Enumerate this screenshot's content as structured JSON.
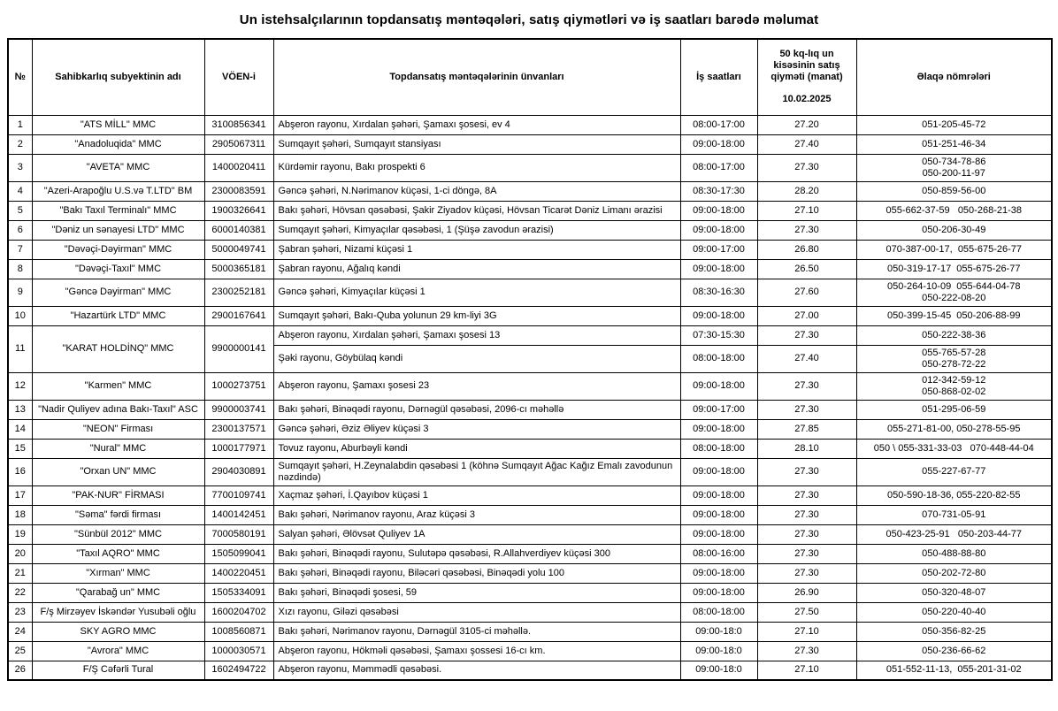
{
  "title": "Un istehsalçılarının topdansatış məntəqələri, satış qiymətləri və iş saatları barədə məlumat",
  "table": {
    "headers": {
      "num": "№",
      "name": "Sahibkarlıq subyektinin adı",
      "voen": "VÖEN-i",
      "address": "Topdansatış məntəqələrinin ünvanları",
      "hours": "İş saatları",
      "price_line1": "50 kq-lıq un kisəsinin satış qiyməti (manat)",
      "price_line2": "10.02.2025",
      "contact": "Əlaqə nömrələri"
    },
    "rows": [
      {
        "num": "1",
        "name": "\"ATS MİLL\" MMC",
        "voen": "3100856341",
        "points": [
          {
            "address": "Abşeron rayonu, Xırdalan şəhəri, Şamaxı şosesi, ev 4",
            "hours": "08:00-17:00",
            "price": "27.20",
            "contacts": [
              "051-205-45-72"
            ]
          }
        ]
      },
      {
        "num": "2",
        "name": "\"Anadoluqida\" MMC",
        "voen": "2905067311",
        "points": [
          {
            "address": "Sumqayıt şəhəri, Sumqayıt stansiyası",
            "hours": "09:00-18:00",
            "price": "27.40",
            "contacts": [
              "051-251-46-34"
            ]
          }
        ]
      },
      {
        "num": "3",
        "name": "\"AVETA\" MMC",
        "voen": "1400020411",
        "points": [
          {
            "address": "Kürdəmir rayonu, Bakı prospekti 6",
            "hours": "08:00-17:00",
            "price": "27.30",
            "contacts": [
              "050-734-78-86",
              "050-200-11-97"
            ]
          }
        ]
      },
      {
        "num": "4",
        "name": "\"Azeri-Arapoğlu U.S.və T.LTD\" BM",
        "voen": "2300083591",
        "points": [
          {
            "address": "Gəncə şəhəri, N.Nərimanov küçəsi, 1-ci döngə, 8A",
            "hours": "08:30-17:30",
            "price": "28.20",
            "contacts": [
              "050-859-56-00"
            ]
          }
        ]
      },
      {
        "num": "5",
        "name": "\"Bakı Taxıl Terminalı\" MMC",
        "voen": "1900326641",
        "points": [
          {
            "address": "Bakı şəhəri, Hövsan qəsəbəsi, Şakir Ziyadov küçəsi, Hövsan Ticarət Dəniz Limanı ərazisi",
            "hours": "09:00-18:00",
            "price": "27.10",
            "contacts": [
              "055-662-37-59   050-268-21-38"
            ]
          }
        ]
      },
      {
        "num": "6",
        "name": "\"Dəniz un sənayesi LTD\" MMC",
        "voen": "6000140381",
        "points": [
          {
            "address": "Sumqayıt şəhəri, Kimyaçılar qəsəbəsi, 1 (Şüşə zavodun ərazisi)",
            "hours": "09:00-18:00",
            "price": "27.30",
            "contacts": [
              "050-206-30-49"
            ]
          }
        ]
      },
      {
        "num": "7",
        "name": "\"Dəvəçi-Dəyirman\" MMC",
        "voen": "5000049741",
        "points": [
          {
            "address": "Şabran şəhəri, Nizami küçəsi 1",
            "hours": "09:00-17:00",
            "price": "26.80",
            "contacts": [
              "070-387-00-17,  055-675-26-77"
            ]
          }
        ]
      },
      {
        "num": "8",
        "name": "\"Dəvəçi-Taxıl\" MMC",
        "voen": "5000365181",
        "points": [
          {
            "address": "Şabran rayonu, Ağalıq kəndi",
            "hours": "09:00-18:00",
            "price": "26.50",
            "contacts": [
              "050-319-17-17  055-675-26-77"
            ]
          }
        ]
      },
      {
        "num": "9",
        "name": "\"Gəncə Dəyirman\" MMC",
        "voen": "2300252181",
        "points": [
          {
            "address": "Gəncə şəhəri, Kimyaçılar küçəsi 1",
            "hours": "08:30-16:30",
            "price": "27.60",
            "contacts": [
              "050-264-10-09  055-644-04-78",
              "050-222-08-20"
            ]
          }
        ]
      },
      {
        "num": "10",
        "name": "\"Hazartürk LTD\" MMC",
        "voen": "2900167641",
        "points": [
          {
            "address": "Sumqayıt şəhəri, Bakı-Quba yolunun 29 km-liyi 3G",
            "hours": "09:00-18:00",
            "price": "27.00",
            "contacts": [
              "050-399-15-45  050-206-88-99"
            ]
          }
        ]
      },
      {
        "num": "11",
        "name": "\"KARAT HOLDİNQ\" MMC",
        "voen": "9900000141",
        "points": [
          {
            "address": "Abşeron rayonu, Xırdalan şəhəri, Şamaxı şosesi 13",
            "hours": "07:30-15:30",
            "price": "27.30",
            "contacts": [
              "050-222-38-36"
            ]
          },
          {
            "address": "Şəki rayonu, Göybülaq kəndi",
            "hours": "08:00-18:00",
            "price": "27.40",
            "contacts": [
              "055-765-57-28",
              "050-278-72-22"
            ]
          }
        ]
      },
      {
        "num": "12",
        "name": "\"Karmen\" MMC",
        "voen": "1000273751",
        "points": [
          {
            "address": "Abşeron rayonu, Şamaxı şosesi 23",
            "hours": "09:00-18:00",
            "price": "27.30",
            "contacts": [
              "012-342-59-12",
              "050-868-02-02"
            ]
          }
        ]
      },
      {
        "num": "13",
        "name": "\"Nadir Quliyev adına Bakı-Taxıl\" ASC",
        "voen": "9900003741",
        "points": [
          {
            "address": "Bakı şəhəri, Binəqədi rayonu, Dərnəgül qəsəbəsi, 2096-cı məhəllə",
            "hours": "09:00-17:00",
            "price": "27.30",
            "contacts": [
              "051-295-06-59"
            ]
          }
        ]
      },
      {
        "num": "14",
        "name": "\"NEON\" Firması",
        "voen": "2300137571",
        "points": [
          {
            "address": "Gəncə şəhəri, Əziz Əliyev küçəsi 3",
            "hours": "09:00-18:00",
            "price": "27.85",
            "contacts": [
              "055-271-81-00, 050-278-55-95"
            ]
          }
        ]
      },
      {
        "num": "15",
        "name": "\"Nural\" MMC",
        "voen": "1000177971",
        "points": [
          {
            "address": "Tovuz rayonu, Aburbəyli kəndi",
            "hours": "08:00-18:00",
            "price": "28.10",
            "contacts": [
              "050 \\ 055-331-33-03   070-448-44-04"
            ]
          }
        ]
      },
      {
        "num": "16",
        "name": "\"Orxan UN\" MMC",
        "voen": "2904030891",
        "points": [
          {
            "address": "Sumqayıt şəhəri, H.Zeynalabdin qəsəbəsi 1 (köhnə Sumqayıt Ağac Kağız Emalı zavodunun nəzdində)",
            "hours": "09:00-18:00",
            "price": "27.30",
            "contacts": [
              "055-227-67-77"
            ]
          }
        ]
      },
      {
        "num": "17",
        "name": "\"PAK-NUR\" FİRMASI",
        "voen": "7700109741",
        "points": [
          {
            "address": "Xaçmaz şəhəri, İ.Qayıbov küçəsi 1",
            "hours": "09:00-18:00",
            "price": "27.30",
            "contacts": [
              "050-590-18-36, 055-220-82-55"
            ]
          }
        ]
      },
      {
        "num": "18",
        "name": "\"Səma\" fərdi firması",
        "voen": "1400142451",
        "points": [
          {
            "address": "Bakı şəhəri, Nərimanov rayonu, Araz küçəsi 3",
            "hours": "09:00-18:00",
            "price": "27.30",
            "contacts": [
              "070-731-05-91"
            ]
          }
        ]
      },
      {
        "num": "19",
        "name": "\"Sünbül 2012\" MMC",
        "voen": "7000580191",
        "points": [
          {
            "address": "Salyan şəhəri, Əlövsət Quliyev 1A",
            "hours": "09:00-18:00",
            "price": "27.30",
            "contacts": [
              "050-423-25-91   050-203-44-77"
            ]
          }
        ]
      },
      {
        "num": "20",
        "name": "\"Taxıl AQRO\" MMC",
        "voen": "1505099041",
        "points": [
          {
            "address": "Bakı şəhəri, Binəqədi rayonu, Sulutəpə qəsəbəsi, R.Allahverdiyev küçəsi 300",
            "hours": "08:00-16:00",
            "price": "27.30",
            "contacts": [
              "050-488-88-80"
            ]
          }
        ]
      },
      {
        "num": "21",
        "name": "\"Xırman\" MMC",
        "voen": "1400220451",
        "points": [
          {
            "address": "Bakı şəhəri, Binəqədi rayonu, Biləcəri qəsəbəsi, Binəqədi yolu 100",
            "hours": "09:00-18:00",
            "price": "27.30",
            "contacts": [
              "050-202-72-80"
            ]
          }
        ]
      },
      {
        "num": "22",
        "name": "\"Qarabağ un\" MMC",
        "voen": "1505334091",
        "points": [
          {
            "address": "Bakı şəhəri, Binəqədi şosesi, 59",
            "hours": "09:00-18:00",
            "price": "26.90",
            "contacts": [
              "050-320-48-07"
            ]
          }
        ]
      },
      {
        "num": "23",
        "name": "F/ş Mirzəyev İskəndər Yusubəli oğlu",
        "voen": "1600204702",
        "points": [
          {
            "address": "Xızı rayonu, Giləzi qəsəbəsi",
            "hours": "08:00-18:00",
            "price": "27.50",
            "contacts": [
              "050-220-40-40"
            ]
          }
        ]
      },
      {
        "num": "24",
        "name": "SKY AGRO MMC",
        "voen": "1008560871",
        "points": [
          {
            "address": "Bakı şəhəri, Nərimanov rayonu, Dərnəgül 3105-ci məhəllə.",
            "hours": "09:00-18:0",
            "price": "27.10",
            "contacts": [
              "050-356-82-25"
            ]
          }
        ]
      },
      {
        "num": "25",
        "name": "\"Avrora\" MMC",
        "voen": "1000030571",
        "points": [
          {
            "address": "Abşeron rayonu, Hökməli qəsəbəsi, Şamaxı şossesi 16-cı km.",
            "hours": "09:00-18:0",
            "price": "27.30",
            "contacts": [
              "050-236-66-62"
            ]
          }
        ]
      },
      {
        "num": "26",
        "name": "F/Ş Cəfərli Tural",
        "voen": "1602494722",
        "points": [
          {
            "address": "Abşeron rayonu, Məmmədli qəsəbəsi.",
            "hours": "09:00-18:0",
            "price": "27.10",
            "contacts": [
              "051-552-11-13,  055-201-31-02"
            ]
          }
        ]
      }
    ]
  }
}
